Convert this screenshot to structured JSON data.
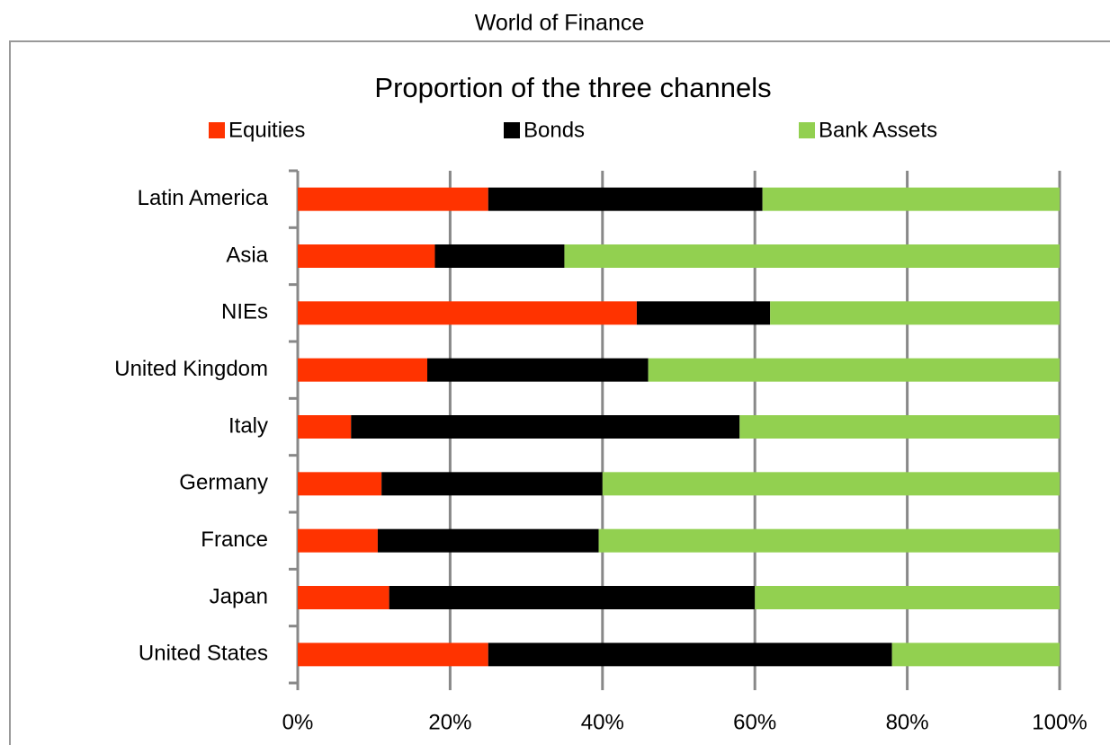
{
  "header": {
    "title": "World of Finance"
  },
  "chart_data": {
    "type": "stacked-bar-horizontal",
    "title": "Proportion of the three channels",
    "categories": [
      "Latin America",
      "Asia",
      "NIEs",
      "United Kingdom",
      "Italy",
      "Germany",
      "France",
      "Japan",
      "United States"
    ],
    "series": [
      {
        "name": "Equities",
        "color": "#ff3300",
        "values": [
          25,
          18,
          44.5,
          17,
          7,
          11,
          10.5,
          12,
          25
        ]
      },
      {
        "name": "Bonds",
        "color": "#000000",
        "values": [
          36,
          17,
          17.5,
          29,
          51,
          29,
          29,
          48,
          53
        ]
      },
      {
        "name": "Bank Assets",
        "color": "#92d050",
        "values": [
          39,
          65,
          38,
          54,
          42,
          60,
          60.5,
          40,
          22
        ]
      }
    ],
    "xlim": [
      0,
      100
    ],
    "xticks": [
      {
        "value": 0,
        "label": "0%"
      },
      {
        "value": 20,
        "label": "20%"
      },
      {
        "value": 40,
        "label": "40%"
      },
      {
        "value": 60,
        "label": "60%"
      },
      {
        "value": 80,
        "label": "80%"
      },
      {
        "value": 100,
        "label": "100%"
      }
    ],
    "grid": true,
    "legend": "top"
  }
}
